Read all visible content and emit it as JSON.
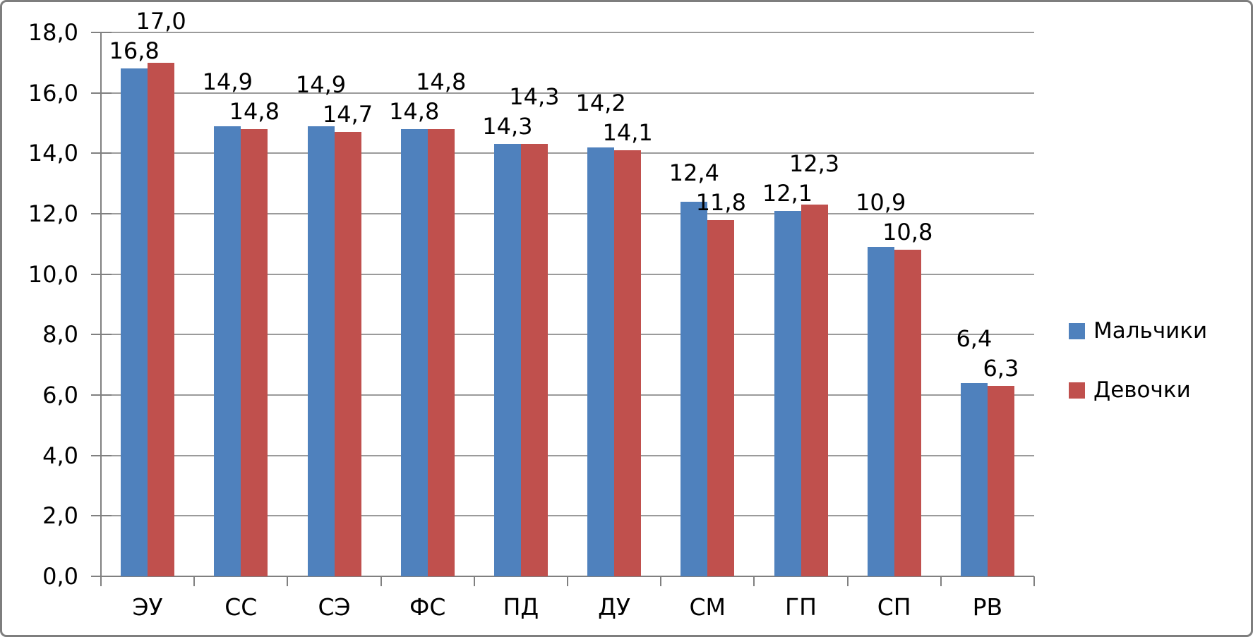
{
  "chart_data": {
    "type": "bar",
    "title": "",
    "xlabel": "",
    "ylabel": "",
    "categories": [
      "ЭУ",
      "СС",
      "СЭ",
      "ФС",
      "ПД",
      "ДУ",
      "СМ",
      "ГП",
      "СП",
      "РВ"
    ],
    "series": [
      {
        "name": "Мальчики",
        "color": "#4F81BD",
        "values": [
          16.8,
          14.9,
          14.9,
          14.8,
          14.3,
          14.2,
          12.4,
          12.1,
          10.9,
          6.4
        ]
      },
      {
        "name": "Девочки",
        "color": "#C0504D",
        "values": [
          17.0,
          14.8,
          14.7,
          14.8,
          14.3,
          14.1,
          11.8,
          12.3,
          10.8,
          6.3
        ]
      }
    ],
    "data_labels": [
      {
        "series": "Мальчики",
        "labels": [
          "16,8",
          "14,9",
          "14,9",
          "14,8",
          "14,3",
          "14,2",
          "12,4",
          "12,1",
          "10,9",
          "6,4"
        ]
      },
      {
        "series": "Девочки",
        "labels": [
          "17,0",
          "14,8",
          "14,7",
          "14,8",
          "14,3",
          "14,1",
          "11,8",
          "12,3",
          "10,8",
          "6,3"
        ]
      }
    ],
    "ytick_labels": [
      "0,0",
      "2,0",
      "4,0",
      "6,0",
      "8,0",
      "10,0",
      "12,0",
      "14,0",
      "16,0",
      "18,0"
    ],
    "ylim": [
      0,
      18
    ],
    "ytick_step": 2,
    "decimal_separator": ",",
    "grid": true,
    "legend_position": "right",
    "upper_label_series_index_per_group": [
      1,
      0,
      0,
      1,
      1,
      0,
      0,
      1,
      0,
      0
    ],
    "colors": {
      "boys_bar": "#4F81BD",
      "girls_bar": "#C0504D",
      "gridline": "#9B9B9B",
      "axis": "#808080",
      "text": "#000000",
      "frame_border": "#7E7E7E",
      "background": "#FFFFFF"
    }
  }
}
